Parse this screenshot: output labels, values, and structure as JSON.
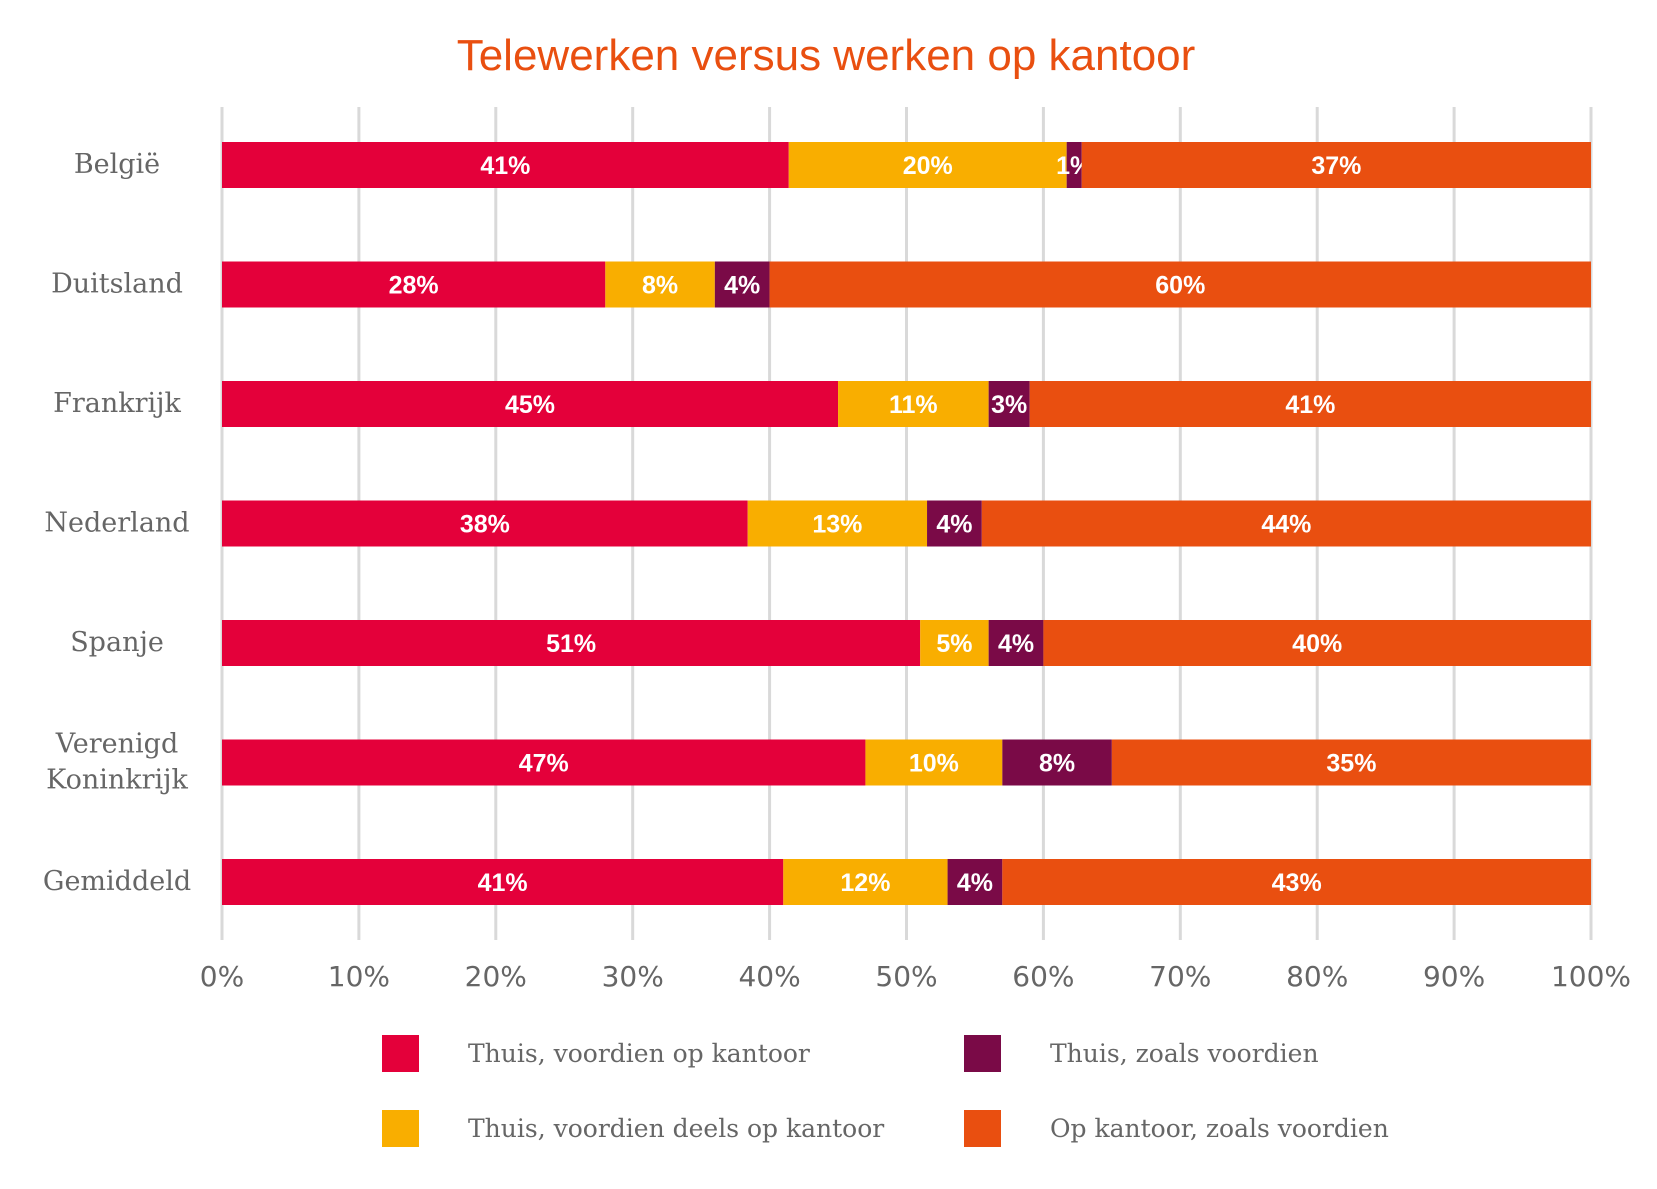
{
  "chart_data": {
    "type": "bar",
    "orientation": "horizontal",
    "stacked": true,
    "title": "Telewerken versus werken op kantoor",
    "categories": [
      "België",
      "Duitsland",
      "Frankrijk",
      "Nederland",
      "Spanje",
      "Verenigd Koninkrijk",
      "Gemiddeld"
    ],
    "category_lines": [
      [
        "België"
      ],
      [
        "Duitsland"
      ],
      [
        "Frankrijk"
      ],
      [
        "Nederland"
      ],
      [
        "Spanje"
      ],
      [
        "Verenigd",
        "Koninkrijk"
      ],
      [
        "Gemiddeld"
      ]
    ],
    "series": [
      {
        "name": "Thuis, voordien op kantoor",
        "color": "#e4003a",
        "values": [
          41.4,
          28,
          45,
          38.4,
          51,
          47,
          41
        ],
        "labels": [
          "41%",
          "28%",
          "45%",
          "38%",
          "51%",
          "47%",
          "41%"
        ]
      },
      {
        "name": "Thuis, voordien deels op kantoor",
        "color": "#f9ae00",
        "values": [
          20.3,
          8,
          11,
          13.1,
          5,
          10,
          12
        ],
        "labels": [
          "20%",
          "8%",
          "11%",
          "13%",
          "5%",
          "10%",
          "12%"
        ]
      },
      {
        "name": "Thuis, zoals voordien",
        "color": "#7a0a47",
        "values": [
          1.1,
          4,
          3,
          4,
          4,
          8,
          4
        ],
        "labels": [
          "1%",
          "4%",
          "3%",
          "4%",
          "4%",
          "8%",
          "4%"
        ]
      },
      {
        "name": "Op kantoor, zoals voordien",
        "color": "#e94f10",
        "values": [
          37.2,
          60,
          41,
          44.5,
          40,
          35,
          43
        ],
        "labels": [
          "37%",
          "60%",
          "41%",
          "44%",
          "40%",
          "35%",
          "43%"
        ]
      }
    ],
    "xlim": [
      0,
      100
    ],
    "xticks": [
      "0%",
      "10%",
      "20%",
      "30%",
      "40%",
      "50%",
      "60%",
      "70%",
      "80%",
      "90%",
      "100%"
    ],
    "grid": true,
    "legend_position": "bottom",
    "colors": {
      "title": "#e94f10",
      "text": "#666666",
      "grid": "#d9d9d9"
    }
  }
}
